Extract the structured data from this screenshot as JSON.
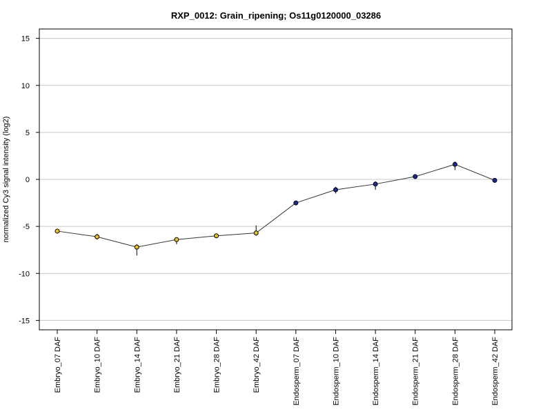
{
  "chart_data": {
    "type": "line",
    "title": "RXP_0012: Grain_ripening; Os11g0120000_03286",
    "xlabel": "",
    "ylabel": "normalized Cy3 signal intensity (log2)",
    "ylim": [
      -16,
      16
    ],
    "yticks": [
      "-15",
      "-10",
      "-5",
      "0",
      "5",
      "10",
      "15"
    ],
    "grid": true,
    "categories": [
      "Embryo_07 DAF",
      "Embryo_10 DAF",
      "Embryo_14 DAF",
      "Embryo_21 DAF",
      "Embryo_28 DAF",
      "Embryo_42 DAF",
      "Endosperm_07 DAF",
      "Endosperm_10 DAF",
      "Endosperm_14 DAF",
      "Endosperm_21 DAF",
      "Endosperm_28 DAF",
      "Endosperm_42 DAF"
    ],
    "series": [
      {
        "values": [
          -5.5,
          -6.1,
          -7.2,
          -6.4,
          -6.0,
          -5.7,
          -2.5,
          -1.1,
          -0.5,
          0.3,
          1.6,
          -0.1
        ],
        "error_low": [
          -5.6,
          -6.4,
          -8.1,
          -6.9,
          -6.1,
          -6.0,
          -2.6,
          -1.5,
          -1.1,
          0.2,
          1.0,
          -0.2
        ],
        "error_high": [
          -5.4,
          -5.8,
          -6.9,
          -6.2,
          -5.9,
          -4.9,
          -2.4,
          -0.8,
          -0.2,
          0.4,
          1.9,
          0.0
        ],
        "point_colors": [
          "#e8c31a",
          "#e8c31a",
          "#e8c31a",
          "#e8c31a",
          "#e8c31a",
          "#e8c31a",
          "#1a2a9a",
          "#1a2a9a",
          "#1a2a9a",
          "#1a2a9a",
          "#1a2a9a",
          "#1a2a9a"
        ]
      }
    ],
    "colors": {
      "line": "#333333",
      "grid": "#c8c8c8",
      "frame": "#000000",
      "point_stroke": "#000000"
    }
  }
}
